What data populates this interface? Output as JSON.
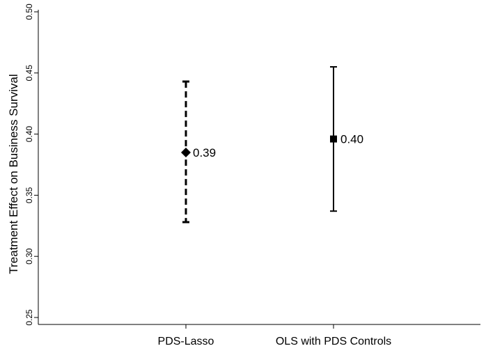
{
  "chart_data": {
    "type": "errorbar",
    "categories": [
      "PDS-Lasso",
      "OLS with PDS Controls"
    ],
    "estimates": [
      0.385,
      0.396
    ],
    "lower": [
      0.328,
      0.337
    ],
    "upper": [
      0.443,
      0.455
    ],
    "value_labels": [
      "0.39",
      "0.40"
    ],
    "markers": [
      "diamond",
      "square"
    ],
    "line_styles": [
      "dashed",
      "solid"
    ],
    "ylabel": "Treatment Effect on Business Survival",
    "xlabel": "",
    "ylim": [
      0.25,
      0.5
    ],
    "yticks": [
      0.25,
      0.3,
      0.35,
      0.4,
      0.45,
      0.5
    ],
    "ytick_labels": [
      "0.25",
      "0.30",
      "0.35",
      "0.40",
      "0.45",
      "0.50"
    ],
    "grid": false,
    "color": "#000000"
  }
}
